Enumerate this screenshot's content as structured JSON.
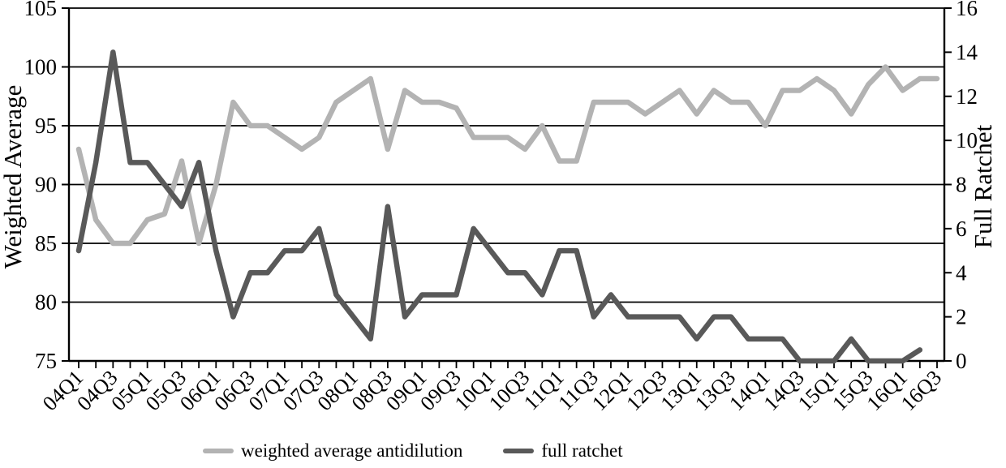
{
  "page": {
    "background": "#ffffff",
    "text_color": "#000000"
  },
  "chart_data": {
    "type": "line",
    "title": "",
    "grid": "horizontal",
    "legend_position": "bottom",
    "axis_color": "#000000",
    "categories": [
      "04Q1",
      "04Q2",
      "04Q3",
      "04Q4",
      "05Q1",
      "05Q2",
      "05Q3",
      "05Q4",
      "06Q1",
      "06Q2",
      "06Q3",
      "06Q4",
      "07Q1",
      "07Q2",
      "07Q3",
      "07Q4",
      "08Q1",
      "08Q2",
      "08Q3",
      "08Q4",
      "09Q1",
      "09Q2",
      "09Q3",
      "09Q4",
      "10Q1",
      "10Q2",
      "10Q3",
      "10Q4",
      "11Q1",
      "11Q2",
      "11Q3",
      "11Q4",
      "12Q1",
      "12Q2",
      "12Q3",
      "12Q4",
      "13Q1",
      "13Q2",
      "13Q3",
      "13Q4",
      "14Q1",
      "14Q2",
      "14Q3",
      "14Q4",
      "15Q1",
      "15Q2",
      "15Q3",
      "15Q4",
      "16Q1",
      "16Q2",
      "16Q3"
    ],
    "x_tick_labels": [
      "04Q1",
      "04Q3",
      "05Q1",
      "05Q3",
      "06Q1",
      "06Q3",
      "07Q1",
      "07Q3",
      "08Q1",
      "08Q3",
      "09Q1",
      "09Q3",
      "10Q1",
      "10Q3",
      "11Q1",
      "11Q3",
      "12Q1",
      "12Q3",
      "13Q1",
      "13Q3",
      "14Q1",
      "14Q3",
      "15Q1",
      "15Q3",
      "16Q1",
      "16Q3"
    ],
    "label_every_n_categories": 2,
    "left_axis": {
      "title": "Weighted Average",
      "min": 75,
      "max": 105,
      "step": 5,
      "tick_values": [
        105,
        100,
        95,
        90,
        85,
        80,
        75
      ]
    },
    "right_axis": {
      "title": "Full Ratchet",
      "min": 0,
      "max": 16,
      "step": 2,
      "tick_values": [
        16,
        14,
        12,
        10,
        8,
        6,
        4,
        2,
        0
      ]
    },
    "series": [
      {
        "name": "weighted average antidilution",
        "axis": "left",
        "color": "#b3b3b3",
        "values": [
          93,
          87,
          85,
          85,
          87,
          87.5,
          92,
          85,
          90,
          97,
          95,
          95,
          94,
          93,
          94,
          97,
          98,
          99,
          93,
          98,
          97,
          97,
          96.5,
          94,
          94,
          94,
          93,
          95,
          92,
          92,
          97,
          97,
          97,
          96,
          97,
          98,
          96,
          98,
          97,
          97,
          95,
          98,
          98,
          99,
          98,
          96,
          98.5,
          100,
          98,
          99,
          99
        ]
      },
      {
        "name": "full ratchet",
        "axis": "right",
        "color": "#595959",
        "values": [
          5,
          9,
          14,
          9,
          9,
          8,
          7,
          9,
          5,
          2,
          4,
          4,
          5,
          5,
          6,
          3,
          2,
          1,
          7,
          2,
          3,
          3,
          3,
          6,
          5,
          4,
          4,
          3,
          5,
          5,
          2,
          3,
          2,
          2,
          2,
          2,
          1,
          2,
          2,
          1,
          1,
          1,
          0,
          0,
          0,
          1,
          0,
          0,
          0,
          0.5,
          null
        ]
      }
    ]
  }
}
